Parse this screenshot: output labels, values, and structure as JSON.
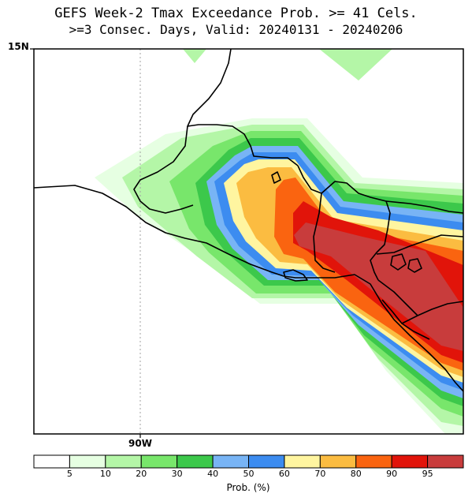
{
  "title": {
    "line1": "GEFS Week-2 Tmax Exceedance Prob. >= 41 Cels.",
    "line2": ">=3 Consec. Days, Valid: 20240131 - 20240206"
  },
  "axes": {
    "lat_label": "15N",
    "lon_label": "90W"
  },
  "colorbar": {
    "title": "Prob. (%)",
    "colors": [
      "#ffffff",
      "#e6ffe2",
      "#b4f6a7",
      "#78e66b",
      "#3cc84b",
      "#78b4f5",
      "#3c8cf0",
      "#fff5a0",
      "#fbbc41",
      "#fa6410",
      "#e1140a",
      "#c83c3c"
    ],
    "labels": [
      "5",
      "10",
      "20",
      "30",
      "40",
      "50",
      "60",
      "70",
      "80",
      "90",
      "95"
    ]
  },
  "bands": [
    {
      "level": "5",
      "color": "#e6ffe2"
    },
    {
      "level": "10",
      "color": "#b4f6a7"
    },
    {
      "level": "20",
      "color": "#78e66b"
    },
    {
      "level": "30",
      "color": "#3cc84b"
    },
    {
      "level": "40",
      "color": "#78b4f5"
    },
    {
      "level": "50",
      "color": "#3c8cf0"
    },
    {
      "level": "60",
      "color": "#fff5a0"
    },
    {
      "level": "70",
      "color": "#fbbc41"
    },
    {
      "level": "80",
      "color": "#fa6410"
    },
    {
      "level": "90",
      "color": "#e1140a"
    },
    {
      "level": "95",
      "color": "#c83c3c"
    }
  ]
}
